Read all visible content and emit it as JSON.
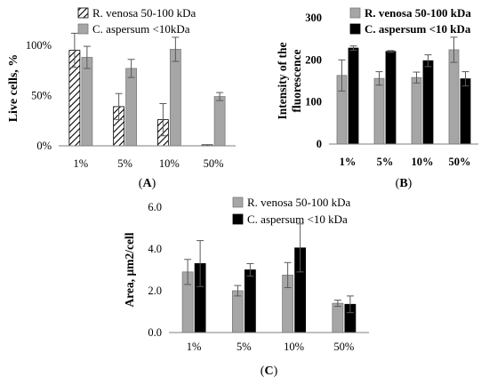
{
  "colors": {
    "gray": "#a6a6a6",
    "black": "#000000",
    "axis": "#7f7f7f",
    "error": "#595959"
  },
  "chart_data": [
    {
      "type": "bar",
      "panel_label": "A",
      "ylabel": "Live cells, %",
      "categories": [
        "1%",
        "5%",
        "10%",
        "50%"
      ],
      "ylim": [
        0,
        115
      ],
      "yticks": [
        0,
        50,
        100
      ],
      "ytick_labels": [
        "0%",
        "50%",
        "100%"
      ],
      "grid": false,
      "legend_position": "top",
      "series": [
        {
          "name": "R. venosa 50-100 kDa",
          "style": "hatched",
          "values": [
            95,
            39,
            26,
            1
          ],
          "errors": [
            17,
            13,
            16,
            0
          ]
        },
        {
          "name": "C. aspersum <10kDa",
          "style": "gray",
          "values": [
            88,
            77,
            96,
            49
          ],
          "errors": [
            11,
            9,
            12,
            4
          ]
        }
      ]
    },
    {
      "type": "bar",
      "panel_label": "B",
      "ylabel": "Intensity of the fluorescence",
      "categories": [
        "1%",
        "5%",
        "10%",
        "50%"
      ],
      "ylim": [
        0,
        300
      ],
      "yticks": [
        0,
        100,
        200,
        300
      ],
      "ytick_labels": [
        "0",
        "100",
        "200",
        "300"
      ],
      "bold_ticks": true,
      "grid": false,
      "legend_position": "top",
      "series": [
        {
          "name": "R. venosa 50-100 kDa",
          "style": "gray",
          "values": [
            163,
            156,
            158,
            224
          ],
          "errors": [
            37,
            16,
            13,
            30
          ]
        },
        {
          "name": "C. aspersum <10 kDa",
          "style": "black",
          "values": [
            228,
            220,
            198,
            155
          ],
          "errors": [
            5,
            2,
            14,
            17
          ]
        }
      ]
    },
    {
      "type": "bar",
      "panel_label": "C",
      "ylabel": "Area, µm2/cell",
      "categories": [
        "1%",
        "5%",
        "10%",
        "50%"
      ],
      "ylim": [
        0,
        6
      ],
      "yticks": [
        0,
        2,
        4,
        6
      ],
      "ytick_labels": [
        "0.0",
        "2.0",
        "4.0",
        "6.0"
      ],
      "grid": false,
      "legend_position": "top",
      "series": [
        {
          "name": "R. venosa 50-100 kDa",
          "style": "gray",
          "values": [
            2.9,
            2.0,
            2.75,
            1.4
          ],
          "errors": [
            0.6,
            0.25,
            0.6,
            0.15
          ]
        },
        {
          "name": "C. aspersum <10 kDa",
          "style": "black",
          "values": [
            3.3,
            3.0,
            4.05,
            1.35
          ],
          "errors": [
            1.1,
            0.3,
            1.15,
            0.4
          ]
        }
      ]
    }
  ]
}
